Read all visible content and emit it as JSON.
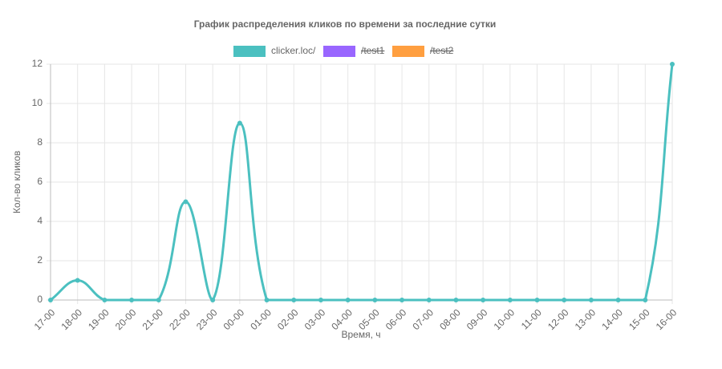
{
  "chart_data": {
    "type": "line",
    "title": "График распределения кликов по времени за последние сутки",
    "xlabel": "Время, ч",
    "ylabel": "Кол-во кликов",
    "categories": [
      "17-00",
      "18-00",
      "19-00",
      "20-00",
      "21-00",
      "22-00",
      "23-00",
      "00-00",
      "01-00",
      "02-00",
      "03-00",
      "04-00",
      "05-00",
      "06-00",
      "07-00",
      "08-00",
      "09-00",
      "10-00",
      "11-00",
      "12-00",
      "13-00",
      "14-00",
      "15-00",
      "16-00"
    ],
    "series": [
      {
        "name": "clicker.loc/",
        "color": "#4bc0c0",
        "values": [
          0,
          1,
          0,
          0,
          0,
          5,
          0,
          9,
          0,
          0,
          0,
          0,
          0,
          0,
          0,
          0,
          0,
          0,
          0,
          0,
          0,
          0,
          0,
          12
        ]
      },
      {
        "name": "/test1",
        "color": "#9966ff",
        "hidden": true
      },
      {
        "name": "/test2",
        "color": "#ff9f40",
        "hidden": true
      }
    ],
    "ylim": [
      0,
      12
    ],
    "yticks": [
      0,
      2,
      4,
      6,
      8,
      10,
      12
    ],
    "grid": true,
    "legend": "top"
  }
}
